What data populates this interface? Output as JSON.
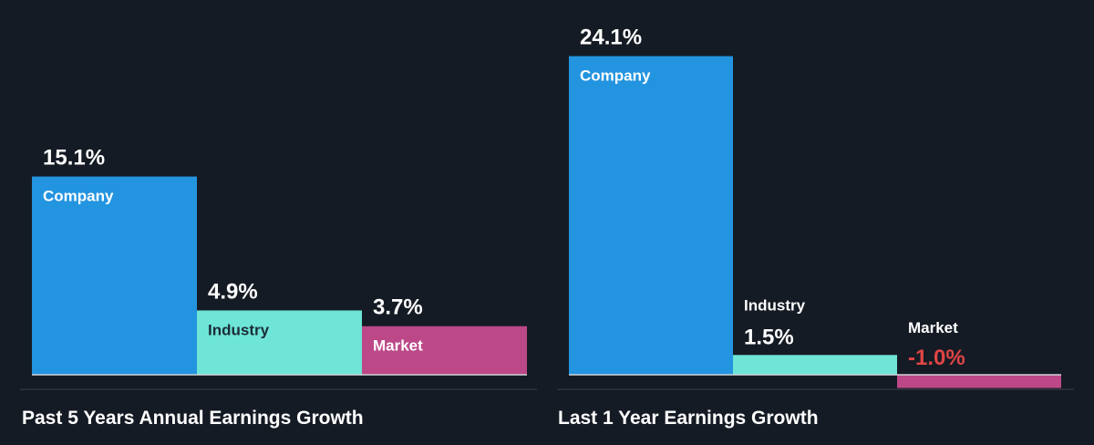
{
  "colors": {
    "background": "#151b24",
    "company": "#2394e0",
    "industry": "#6ee5d6",
    "market": "#bc4888",
    "negative_text": "#e04545",
    "text": "#ffffff",
    "dark_text": "#1c2b3a",
    "axis": "#d0d4d8",
    "divider": "#3a414b"
  },
  "chart_data": [
    {
      "type": "bar",
      "title": "Past 5 Years Annual Earnings Growth",
      "categories": [
        "Company",
        "Industry",
        "Market"
      ],
      "values": [
        15.1,
        4.9,
        3.7
      ],
      "value_labels": [
        "15.1%",
        "4.9%",
        "3.7%"
      ],
      "unit": "%"
    },
    {
      "type": "bar",
      "title": "Last 1 Year Earnings Growth",
      "categories": [
        "Company",
        "Industry",
        "Market"
      ],
      "values": [
        24.1,
        1.5,
        -1.0
      ],
      "value_labels": [
        "24.1%",
        "1.5%",
        "-1.0%"
      ],
      "unit": "%"
    }
  ]
}
